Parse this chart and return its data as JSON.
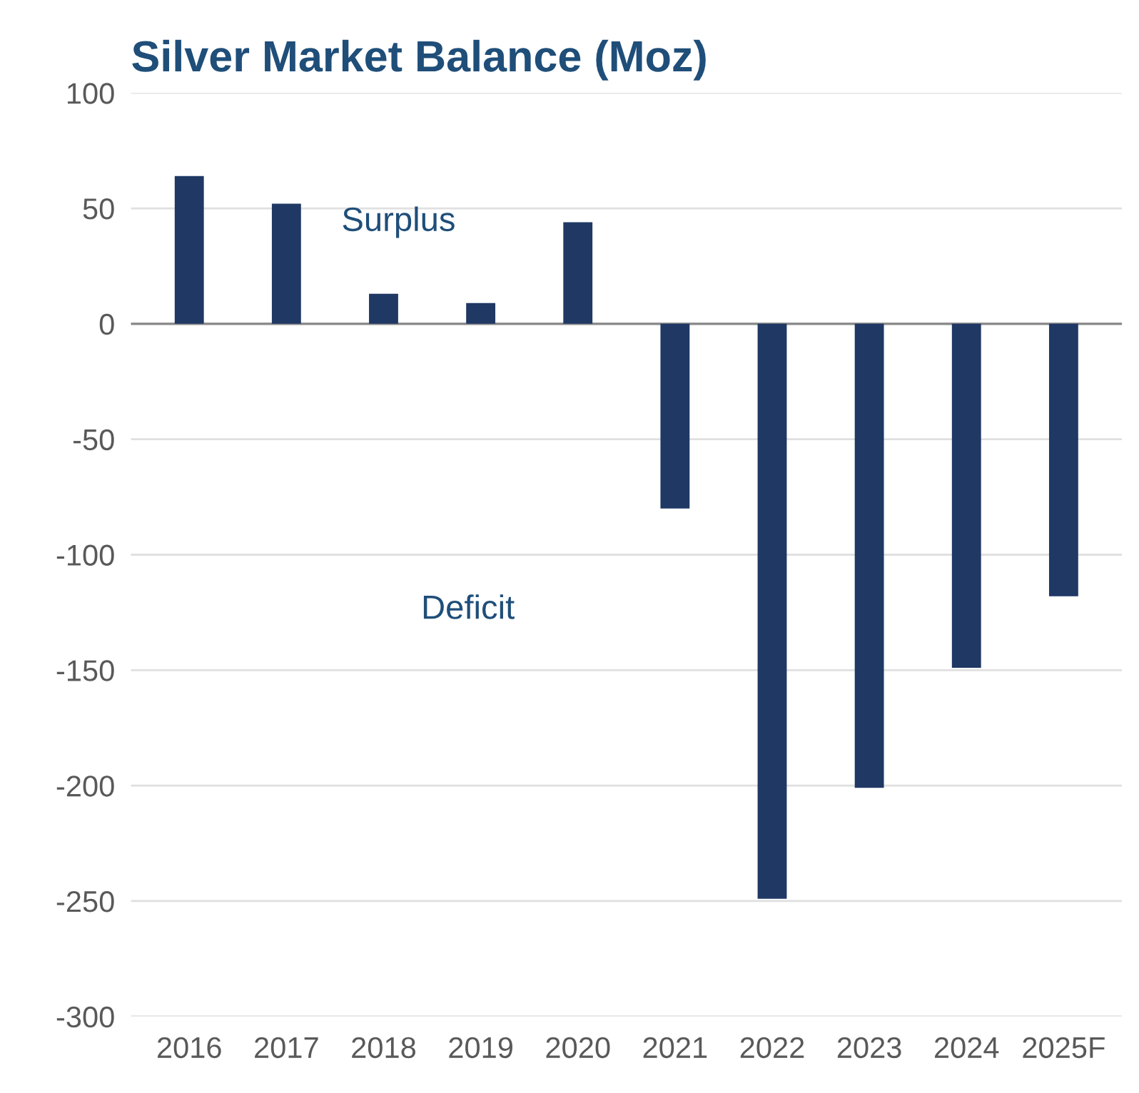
{
  "chart_data": {
    "type": "bar",
    "title": "Silver Market Balance (Moz)",
    "categories": [
      "2016",
      "2017",
      "2018",
      "2019",
      "2020",
      "2021",
      "2022",
      "2023",
      "2024",
      "2025F"
    ],
    "values": [
      64,
      52,
      13,
      9,
      44,
      -80,
      -249,
      -201,
      -149,
      -118
    ],
    "color": "#1f3864",
    "ylim": [
      -300,
      100
    ],
    "yticks": [
      -300,
      -250,
      -200,
      -150,
      -100,
      -50,
      0,
      50,
      100
    ],
    "grid": "y",
    "annotations": [
      "Surplus",
      "Deficit"
    ]
  }
}
